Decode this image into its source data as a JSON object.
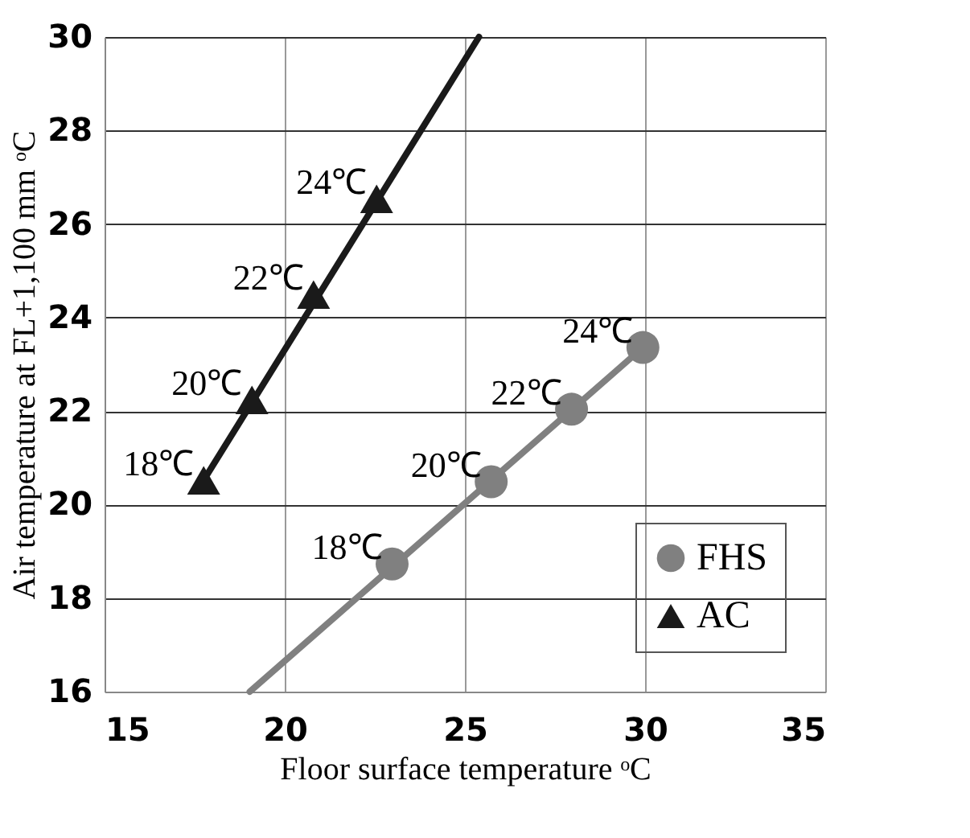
{
  "chart_data": {
    "type": "scatter",
    "xlabel": "Floor surface temperature ᵒC",
    "ylabel": "Air temperature at FL+1,100 mm ᵒC",
    "xlim": [
      15,
      35
    ],
    "xticks": [
      15,
      20,
      25,
      30,
      35
    ],
    "ylim": [
      16,
      30
    ],
    "yticks": [
      16,
      18,
      20,
      22,
      24,
      26,
      28,
      30
    ],
    "grid": true,
    "legend": "bottom right",
    "series": [
      {
        "name": "FHS",
        "color": "#808080",
        "marker": "circle",
        "x": [
          22.98,
          25.73,
          27.96,
          29.94
        ],
        "values": [
          18.73,
          20.49,
          22.04,
          23.36
        ]
      },
      {
        "name": "AC",
        "color": "#1a1a1a",
        "marker": "triangle",
        "x": [
          17.75,
          19.09,
          20.8,
          22.55
        ],
        "values": [
          20.52,
          22.24,
          24.49,
          26.54
        ]
      },
      {
        "type": "line",
        "color": "#808080",
        "marker": "none",
        "x": [
          19.03,
          29.94
        ],
        "values": [
          16,
          23.36
        ]
      },
      {
        "type": "line",
        "color": "#1a1a1a",
        "marker": "none",
        "x": [
          17.75,
          25.39
        ],
        "values": [
          20.52,
          30
        ]
      }
    ],
    "annotations": [
      {
        "text": "18℃",
        "x": 22.98,
        "y": 18.73
      },
      {
        "text": "20℃",
        "x": 25.73,
        "y": 20.49
      },
      {
        "text": "22℃",
        "x": 27.96,
        "y": 22.04
      },
      {
        "text": "24℃",
        "x": 29.94,
        "y": 23.36
      },
      {
        "text": "18℃",
        "x": 17.75,
        "y": 20.52
      },
      {
        "text": "20℃",
        "x": 19.09,
        "y": 22.24
      },
      {
        "text": "22℃",
        "x": 20.8,
        "y": 24.49
      },
      {
        "text": "24℃",
        "x": 22.55,
        "y": 26.54
      }
    ]
  }
}
